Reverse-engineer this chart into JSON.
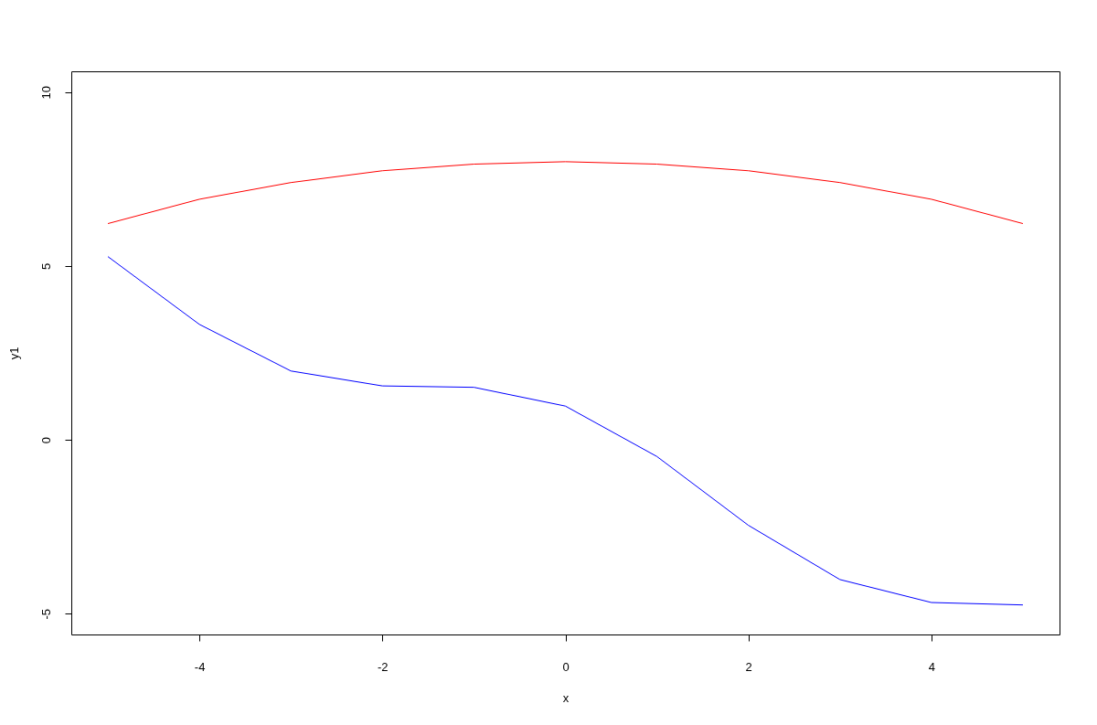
{
  "chart_data": {
    "type": "line",
    "xlabel": "x",
    "ylabel": "y1",
    "x": [
      -5,
      -4,
      -3,
      -2,
      -1,
      0,
      1,
      2,
      3,
      4,
      5
    ],
    "series": [
      {
        "color": "#ff0000",
        "values": [
          6.22,
          6.92,
          7.4,
          7.74,
          7.93,
          8.0,
          7.93,
          7.74,
          7.4,
          6.92,
          6.22
        ]
      },
      {
        "color": "#0000ff",
        "values": [
          5.27,
          3.32,
          1.98,
          1.55,
          1.51,
          0.97,
          -0.48,
          -2.46,
          -4.02,
          -4.68,
          -4.75
        ]
      }
    ],
    "xlim": [
      -5.4,
      5.4
    ],
    "ylim": [
      -5.6,
      10.6
    ],
    "xticks": [
      -4,
      -2,
      0,
      2,
      4
    ],
    "yticks": [
      -5,
      0,
      5,
      10
    ],
    "grid": false,
    "marker": "none",
    "line_style": "solid"
  }
}
